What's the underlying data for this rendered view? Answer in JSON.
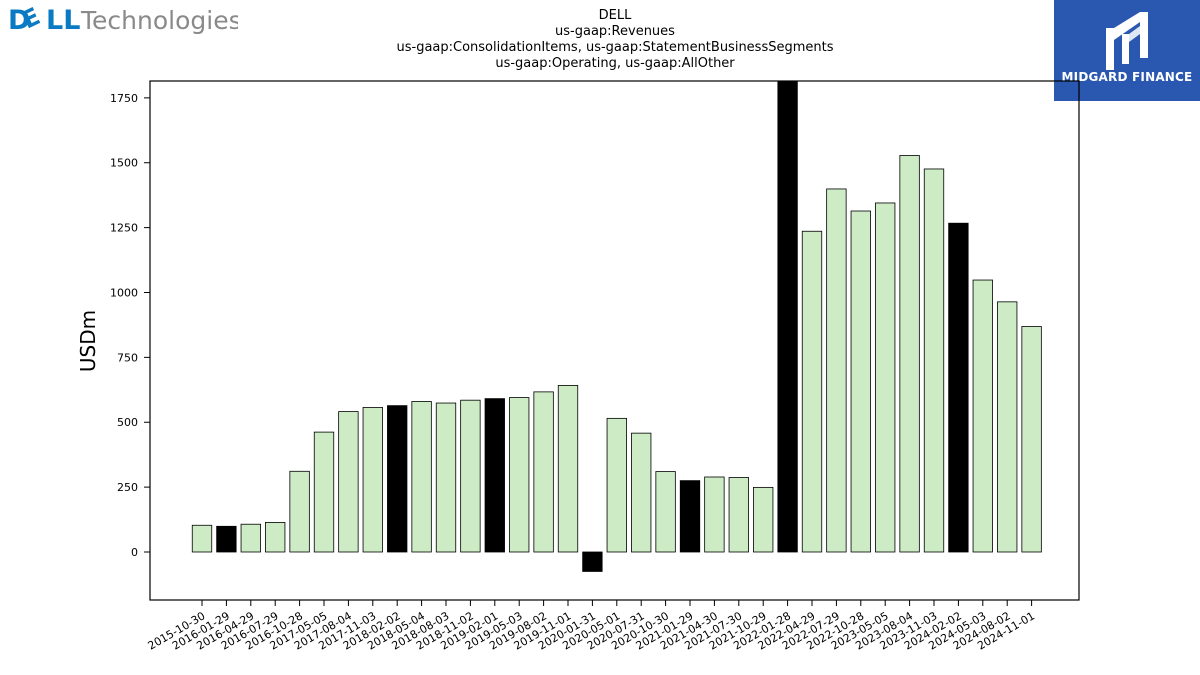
{
  "header": {
    "company_logo": {
      "word_left": "D",
      "word_mid": "LL",
      "word_right": "Technologies",
      "icon": "dell-technologies-logo",
      "color": "#0a7bc2",
      "text_color": "#8a8a8a"
    },
    "publisher_logo": {
      "label": "MIDGARD FINANCE",
      "icon": "midgard-m-logo",
      "bg": "#2a57b0"
    }
  },
  "chart_data": {
    "type": "bar",
    "title": "DELL",
    "subtitle_lines": [
      "us-gaap:Revenues",
      "us-gaap:ConsolidationItems, us-gaap:StatementBusinessSegments",
      "us-gaap:Operating, us-gaap:AllOther"
    ],
    "xlabel": "",
    "ylabel": "USDm",
    "ylim": [
      -185,
      1815
    ],
    "yticks": [
      0,
      250,
      500,
      750,
      1000,
      1250,
      1500,
      1750
    ],
    "grid": false,
    "legend": "none",
    "colors": {
      "quarter": "#cdebc5",
      "fiscal_year_end": "#000000",
      "edge": "#000000"
    },
    "categories": [
      "2015-10-30",
      "2016-01-29",
      "2016-04-29",
      "2016-07-29",
      "2016-10-28",
      "2017-05-05",
      "2017-08-04",
      "2017-11-03",
      "2018-02-02",
      "2018-05-04",
      "2018-08-03",
      "2018-11-02",
      "2019-02-01",
      "2019-05-03",
      "2019-08-02",
      "2019-11-01",
      "2020-01-31",
      "2020-05-01",
      "2020-07-31",
      "2020-10-30",
      "2021-01-29",
      "2021-04-30",
      "2021-07-30",
      "2021-10-29",
      "2022-01-28",
      "2022-04-29",
      "2022-07-29",
      "2022-10-28",
      "2023-05-05",
      "2023-08-04",
      "2023-11-03",
      "2024-02-02",
      "2024-05-03",
      "2024-08-02",
      "2024-11-01"
    ],
    "values": [
      103,
      99,
      107,
      114,
      311,
      462,
      541,
      557,
      564,
      580,
      574,
      585,
      591,
      595,
      617,
      642,
      -75,
      515,
      458,
      310,
      275,
      289,
      287,
      249,
      1815,
      1236,
      1399,
      1314,
      1345,
      1528,
      1476,
      1267,
      1048,
      964,
      869
    ],
    "highlight": [
      false,
      true,
      false,
      false,
      false,
      false,
      false,
      false,
      true,
      false,
      false,
      false,
      true,
      false,
      false,
      false,
      true,
      false,
      false,
      false,
      true,
      false,
      false,
      false,
      true,
      false,
      false,
      false,
      false,
      false,
      false,
      true,
      false,
      false,
      false
    ]
  }
}
